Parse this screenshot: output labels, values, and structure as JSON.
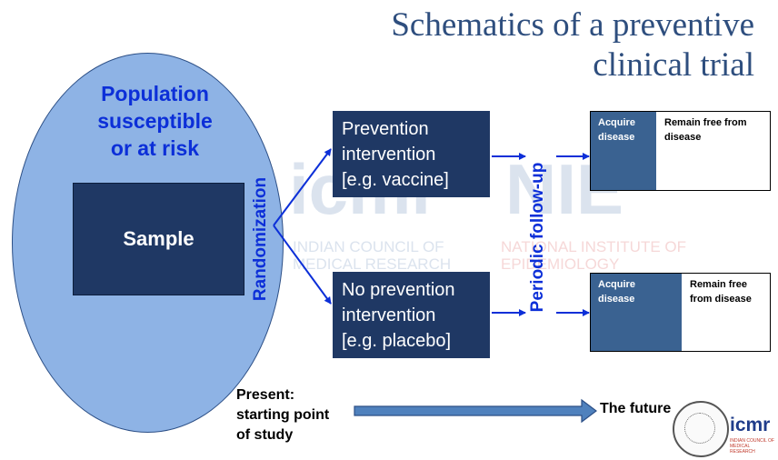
{
  "title": {
    "line1": "Schematics of a preventive",
    "line2": "clinical trial"
  },
  "population": {
    "line1": "Population",
    "line2": "susceptible",
    "line3": "or at risk"
  },
  "sample_label": "Sample",
  "randomization_label": "Randomization",
  "followup_label": "Periodic follow-up",
  "prevention_box": {
    "line1": "Prevention",
    "line2": "intervention",
    "line3": "[e.g. vaccine]"
  },
  "no_prevention_box": {
    "line1": "No prevention",
    "line2": "intervention",
    "line3": "[e.g. placebo]"
  },
  "outcome_top": {
    "acquire": "Acquire disease",
    "remain": "Remain free from disease"
  },
  "outcome_bottom": {
    "acquire": "Acquire disease",
    "remain": "Remain free from disease"
  },
  "timeline": {
    "start_line1": "Present:",
    "start_line2": "starting point",
    "start_line3": "of study",
    "end": "The future"
  },
  "watermark": {
    "icmr": "icmr",
    "icmr_line1": "INDIAN COUNCIL OF",
    "icmr_line2": "MEDICAL RESEARCH",
    "nie": "NIE",
    "nie_line1": "NATIONAL INSTITUTE OF",
    "nie_line2": "EPIDEMIOLOGY"
  },
  "logo": {
    "name": "icmr",
    "subtitle": "INDIAN COUNCIL OF MEDICAL RESEARCH"
  },
  "colors": {
    "title": "#2e4e7e",
    "ellipse": "#8eb3e5",
    "box_dark": "#1f3864",
    "accent_blue": "#0c2fd8",
    "outcome_left": "#3a6291",
    "timeline_arrow": "#4f81bd"
  }
}
